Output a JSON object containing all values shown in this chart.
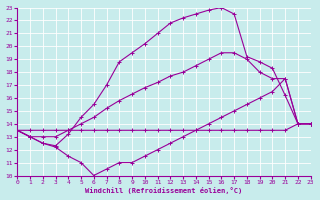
{
  "xlabel": "Windchill (Refroidissement éolien,°C)",
  "bg_color": "#c8ecec",
  "line_color": "#990099",
  "grid_color": "#ffffff",
  "xmin": 0,
  "xmax": 23,
  "ymin": 10,
  "ymax": 23,
  "line_top_x": [
    0,
    1,
    2,
    3,
    4,
    5,
    6,
    7,
    8,
    9,
    10,
    11,
    12,
    13,
    14,
    15,
    16,
    17,
    18,
    19,
    20,
    21,
    22,
    23
  ],
  "line_top_y": [
    13.5,
    13.0,
    12.5,
    12.3,
    13.2,
    14.5,
    15.5,
    17.0,
    18.8,
    19.5,
    20.2,
    21.0,
    21.8,
    22.2,
    22.5,
    22.8,
    23.0,
    22.5,
    19.2,
    18.8,
    18.3,
    16.2,
    14.0,
    14.0
  ],
  "line_mid_x": [
    0,
    1,
    2,
    3,
    4,
    5,
    6,
    7,
    8,
    9,
    10,
    11,
    12,
    13,
    14,
    15,
    16,
    17,
    18,
    19,
    20,
    21,
    22,
    23
  ],
  "line_mid_y": [
    13.5,
    13.0,
    13.0,
    13.0,
    13.5,
    14.0,
    14.5,
    15.2,
    15.8,
    16.3,
    16.8,
    17.2,
    17.7,
    18.0,
    18.5,
    19.0,
    19.5,
    19.5,
    19.0,
    18.0,
    17.5,
    17.5,
    14.0,
    14.0
  ],
  "line_low_x": [
    0,
    1,
    2,
    3,
    4,
    5,
    6,
    7,
    8,
    9,
    10,
    11,
    12,
    13,
    14,
    15,
    16,
    17,
    18,
    19,
    20,
    21,
    22,
    23
  ],
  "line_low_y": [
    13.5,
    13.0,
    12.5,
    12.2,
    11.5,
    11.0,
    10.0,
    10.5,
    11.0,
    11.0,
    11.5,
    12.0,
    12.5,
    13.0,
    13.5,
    14.0,
    14.5,
    15.0,
    15.5,
    16.0,
    16.5,
    17.5,
    14.0,
    14.0
  ],
  "line_flat_x": [
    0,
    1,
    2,
    3,
    4,
    5,
    6,
    7,
    8,
    9,
    10,
    11,
    12,
    13,
    14,
    15,
    16,
    17,
    18,
    19,
    20,
    21,
    22,
    23
  ],
  "line_flat_y": [
    13.5,
    13.5,
    13.5,
    13.5,
    13.5,
    13.5,
    13.5,
    13.5,
    13.5,
    13.5,
    13.5,
    13.5,
    13.5,
    13.5,
    13.5,
    13.5,
    13.5,
    13.5,
    13.5,
    13.5,
    13.5,
    13.5,
    14.0,
    14.0
  ]
}
